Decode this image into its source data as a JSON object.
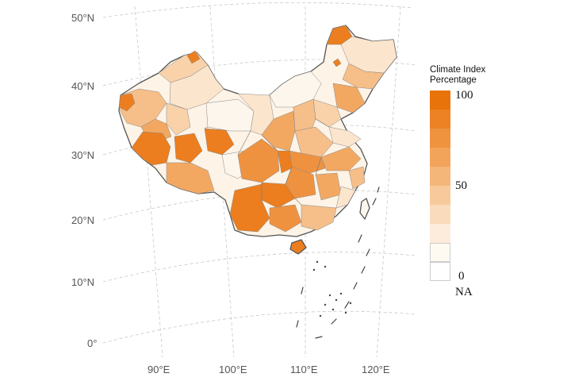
{
  "map": {
    "lat_labels": [
      "50°N",
      "40°N",
      "30°N",
      "20°N",
      "10°N",
      "0°"
    ],
    "lon_labels": [
      "90°E",
      "100°E",
      "110°E",
      "120°E"
    ],
    "colors": {
      "c0": "#fdf6ec",
      "c1": "#fce5cd",
      "c2": "#f9d2aa",
      "c3": "#f6be88",
      "c4": "#f3a862",
      "c5": "#ef9240",
      "c6": "#ec7e1f",
      "c7": "#e8730a",
      "none": "#ffffff"
    }
  },
  "legend": {
    "title_line1": "Climate Index",
    "title_line2": "Percentage",
    "labels": {
      "max": "100",
      "mid": "50",
      "min": "0",
      "na": "NA"
    },
    "bins": [
      "#e8730a",
      "#ec8224",
      "#ef933f",
      "#f2a45b",
      "#f5b679",
      "#f8c99a",
      "#fadbbb",
      "#fdebdb",
      "#fefaf2",
      "#ffffff"
    ]
  }
}
